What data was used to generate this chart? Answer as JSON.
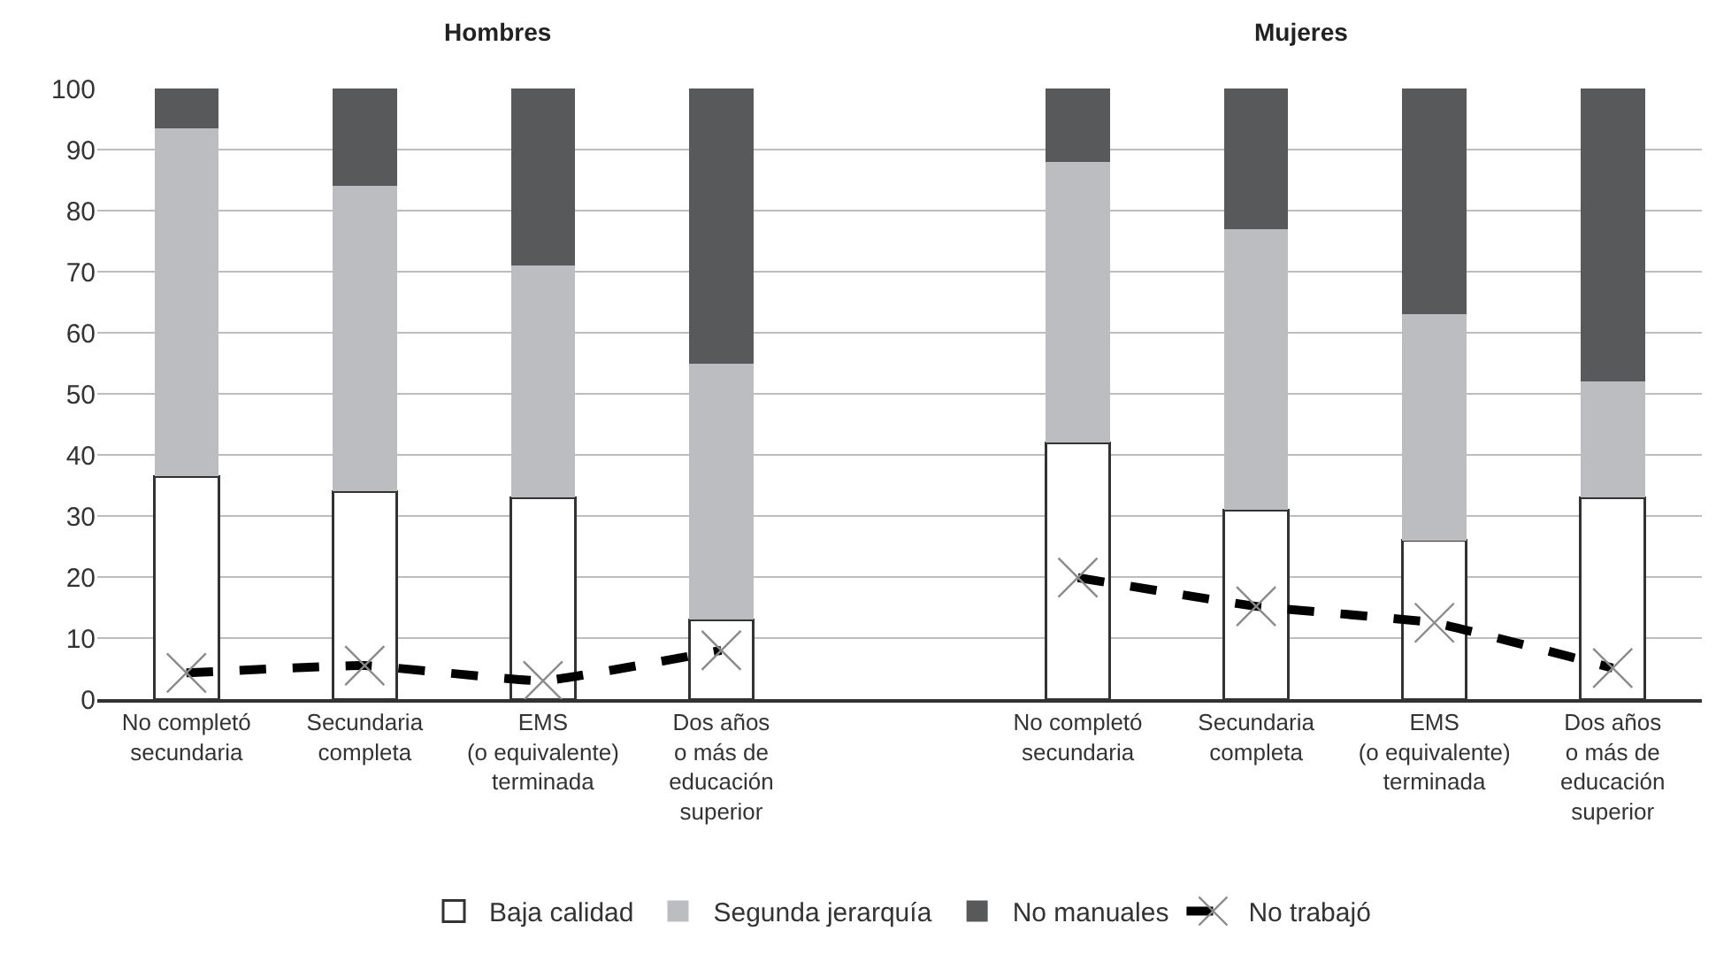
{
  "chart_data": [
    {
      "type": "bar",
      "title": "Hombres",
      "stacked": true,
      "categories": [
        "No completó\nsecundaria",
        "Secundaria\ncompleta",
        "EMS\n(o equivalente)\nterminada",
        "Dos años\no más de\neducación\nsuperior"
      ],
      "series": [
        {
          "name": "Baja calidad",
          "color": "#ffffff",
          "values": [
            36.5,
            34,
            33,
            13
          ]
        },
        {
          "name": "Segunda jerarquía",
          "color": "#bcbdc0",
          "values": [
            57,
            50,
            38,
            42
          ]
        },
        {
          "name": "No manuales",
          "color": "#58595b",
          "values": [
            6.5,
            16,
            29,
            45
          ]
        },
        {
          "name": "No trabajó",
          "type": "line",
          "color": "#000000",
          "values": [
            4.3,
            5.5,
            3,
            8
          ]
        }
      ],
      "ylim": [
        0,
        100
      ],
      "yticks": [
        0,
        10,
        20,
        30,
        40,
        50,
        60,
        70,
        80,
        90,
        100
      ],
      "grid": "y",
      "legend": "bottom",
      "marker": "cross",
      "line_style": "dashed"
    },
    {
      "type": "bar",
      "title": "Mujeres",
      "stacked": true,
      "categories": [
        "No completó\nsecundaria",
        "Secundaria\ncompleta",
        "EMS\n(o equivalente)\nterminada",
        "Dos años\no más de\neducación\nsuperior"
      ],
      "series": [
        {
          "name": "Baja calidad",
          "color": "#ffffff",
          "values": [
            42,
            31,
            26,
            33
          ]
        },
        {
          "name": "Segunda jerarquía",
          "color": "#bcbdc0",
          "values": [
            46,
            46,
            37,
            19
          ]
        },
        {
          "name": "No manuales",
          "color": "#58595b",
          "values": [
            12,
            23,
            37,
            48
          ]
        },
        {
          "name": "No trabajó",
          "type": "line",
          "color": "#000000",
          "values": [
            19.9,
            15.2,
            12.5,
            5.1
          ]
        }
      ],
      "ylim": [
        0,
        100
      ],
      "yticks": [
        0,
        10,
        20,
        30,
        40,
        50,
        60,
        70,
        80,
        90,
        100
      ],
      "grid": "y",
      "tick_labels": "x",
      "marker": "cross",
      "line_style": "dashed"
    }
  ]
}
